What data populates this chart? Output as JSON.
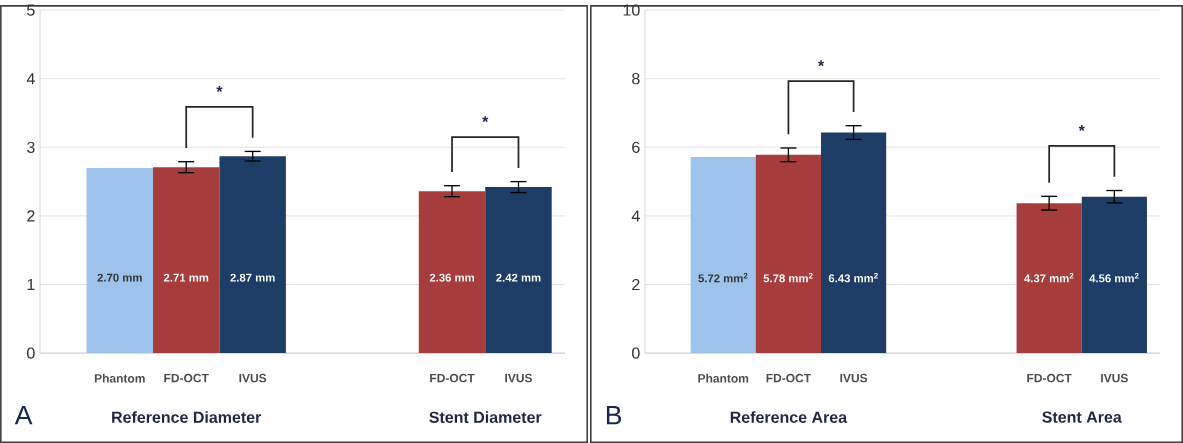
{
  "chart_data": [
    {
      "type": "bar",
      "categories": [
        "Phantom",
        "FD-OCT",
        "IVUS",
        null,
        null,
        "FD-OCT",
        "IVUS"
      ],
      "values": [
        2.7,
        2.71,
        2.87,
        null,
        null,
        2.36,
        2.42
      ],
      "errors": [
        null,
        0.08,
        0.07,
        null,
        null,
        0.08,
        0.08
      ],
      "colors": [
        "#9dc3ec",
        "#a63c3c",
        "#1e3d66",
        null,
        null,
        "#a63c3c",
        "#1e3d66"
      ],
      "value_labels": [
        "2.70 mm",
        "2.71 mm",
        "2.87 mm",
        null,
        null,
        "2.36 mm",
        "2.42 mm"
      ],
      "ylim": [
        0,
        5
      ],
      "yticks": [
        0,
        1,
        2,
        3,
        4,
        5
      ],
      "grid": "y",
      "annotations": [
        "*",
        "*",
        "Reference Diameter",
        "Stent Diameter",
        "A"
      ]
    },
    {
      "type": "bar",
      "categories": [
        "Phantom",
        "FD-OCT",
        "IVUS",
        null,
        null,
        "FD-OCT",
        "IVUS"
      ],
      "values": [
        5.72,
        5.78,
        6.43,
        null,
        null,
        4.37,
        4.56
      ],
      "errors": [
        null,
        0.2,
        0.2,
        null,
        null,
        0.2,
        0.18
      ],
      "colors": [
        "#9dc3ec",
        "#a63c3c",
        "#1e3d66",
        null,
        null,
        "#a63c3c",
        "#1e3d66"
      ],
      "value_labels": [
        "5.72 mm$^{2}$",
        "5.78 mm$^{2}$",
        "6.43 mm$^{2}$",
        null,
        null,
        "4.37 mm$^{2}$",
        "4.56 mm$^{2}$"
      ],
      "ylim": [
        0,
        10
      ],
      "yticks": [
        0,
        2,
        4,
        6,
        8,
        10
      ],
      "grid": "y",
      "annotations": [
        "*",
        "*",
        "Reference Area",
        "Stent Area",
        "B"
      ]
    }
  ]
}
